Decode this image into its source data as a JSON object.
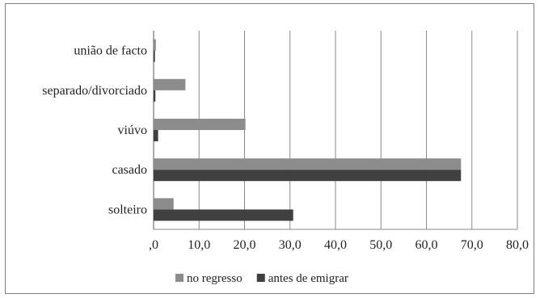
{
  "chart_data": {
    "type": "bar",
    "orientation": "horizontal",
    "categories": [
      "solteiro",
      "casado",
      "viúvo",
      "separado/divorciado",
      "união de facto"
    ],
    "series": [
      {
        "name": "no regresso",
        "values": [
          4.4,
          67.6,
          20.2,
          7.0,
          0.5
        ],
        "color": "#8c8c8c"
      },
      {
        "name": "antes de emigrar",
        "values": [
          30.7,
          67.6,
          1.0,
          0.4,
          0.3
        ],
        "color": "#404040"
      }
    ],
    "x_ticks": [
      0,
      10,
      20,
      30,
      40,
      50,
      60,
      70,
      80
    ],
    "x_tick_labels": [
      ",0",
      "10,0",
      "20,0",
      "30,0",
      "40,0",
      "50,0",
      "60,0",
      "70,0",
      "80,0"
    ],
    "xlim": [
      0,
      80
    ],
    "grid": "vertical",
    "legend_position": "bottom"
  }
}
